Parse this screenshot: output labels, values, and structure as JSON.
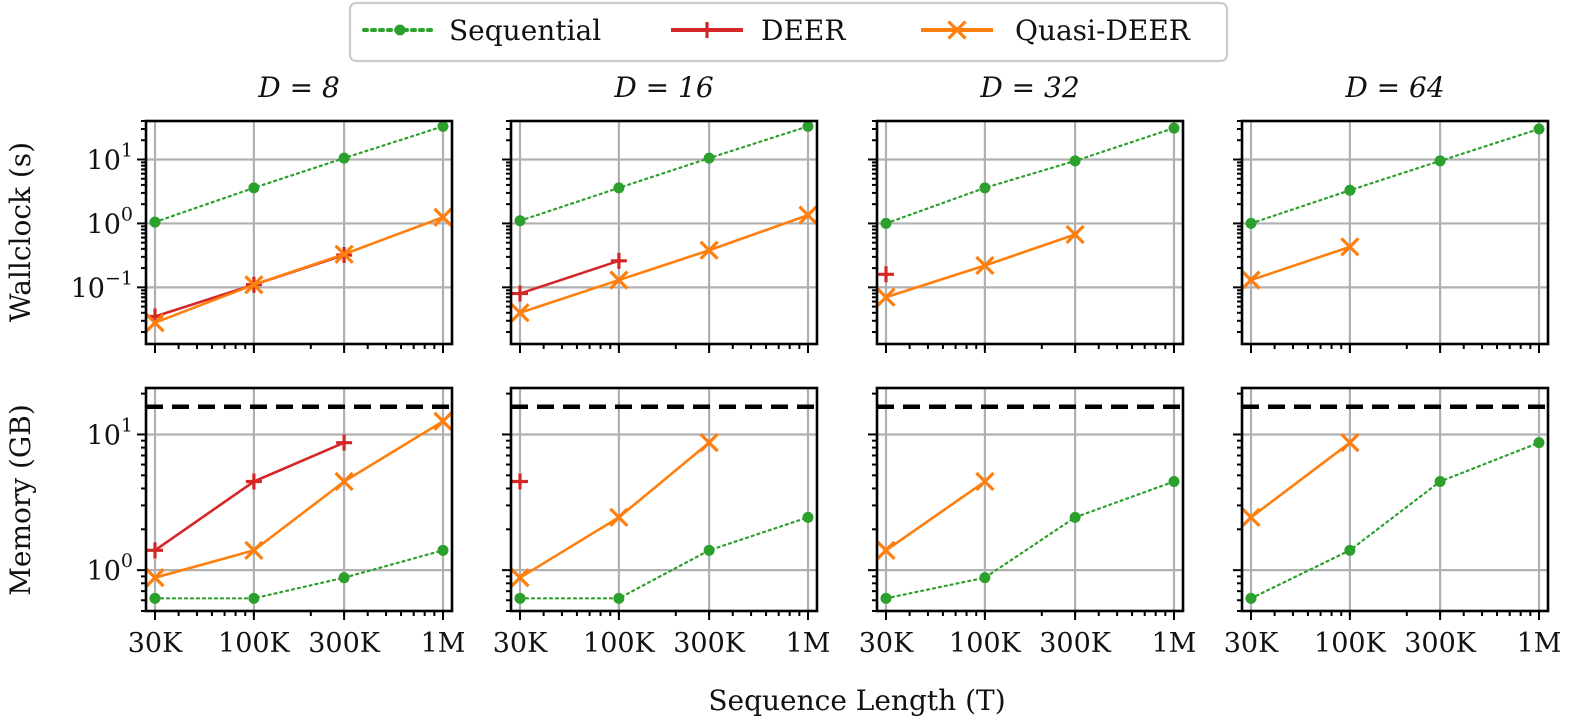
{
  "chart_data": {
    "type": "line",
    "title": "",
    "xlabel": "Sequence Length (T)",
    "ylabels": {
      "wallclock": "Wallclock (s)",
      "memory": "Memory (GB)"
    },
    "x_categories": [
      "30K",
      "100K",
      "300K",
      "1M"
    ],
    "x_values": [
      30000,
      100000,
      300000,
      1000000
    ],
    "x_scale": "log",
    "y_scale": "log",
    "grid": true,
    "legend_position": "top-center",
    "legend": [
      {
        "name": "Sequential",
        "color": "#2ca02c",
        "marker": "circle",
        "linestyle": "dotted"
      },
      {
        "name": "DEER",
        "color": "#d62728",
        "marker": "plus",
        "linestyle": "solid"
      },
      {
        "name": "Quasi-DEER",
        "color": "#ff7f0e",
        "marker": "x",
        "linestyle": "solid"
      }
    ],
    "memory_limit_gb": 16,
    "rows": {
      "wallclock": {
        "ylim": [
          0.013,
          40
        ],
        "yticks": [
          0.1,
          1,
          10
        ],
        "ytick_labels": [
          [
            "10",
            "−1"
          ],
          [
            "10",
            "0"
          ],
          [
            "10",
            "1"
          ]
        ]
      },
      "memory": {
        "ylim": [
          0.5,
          22
        ],
        "yticks": [
          1,
          10
        ],
        "ytick_labels": [
          [
            "10",
            "0"
          ],
          [
            "10",
            "1"
          ]
        ]
      }
    },
    "panels": [
      {
        "title": "D = 8",
        "wallclock": {
          "Sequential": [
            1.05,
            3.6,
            10.5,
            33
          ],
          "DEER": [
            0.035,
            0.11,
            0.32,
            null
          ],
          "Quasi-DEER": [
            0.028,
            0.11,
            0.33,
            1.25
          ]
        },
        "memory": {
          "Sequential": [
            0.62,
            0.62,
            0.88,
            1.4
          ],
          "DEER": [
            1.4,
            4.5,
            8.7,
            null
          ],
          "Quasi-DEER": [
            0.88,
            1.4,
            4.5,
            12.5
          ]
        }
      },
      {
        "title": "D = 16",
        "wallclock": {
          "Sequential": [
            1.1,
            3.6,
            10.5,
            33
          ],
          "DEER": [
            0.08,
            0.26,
            null,
            null
          ],
          "Quasi-DEER": [
            0.04,
            0.13,
            0.38,
            1.35
          ]
        },
        "memory": {
          "Sequential": [
            0.62,
            0.62,
            1.4,
            2.45
          ],
          "DEER": [
            4.5,
            null,
            null,
            null
          ],
          "Quasi-DEER": [
            0.88,
            2.45,
            8.7,
            null
          ]
        }
      },
      {
        "title": "D = 32",
        "wallclock": {
          "Sequential": [
            1.0,
            3.6,
            9.5,
            31
          ],
          "DEER": [
            0.16,
            null,
            null,
            null
          ],
          "Quasi-DEER": [
            0.07,
            0.22,
            0.67,
            null
          ]
        },
        "memory": {
          "Sequential": [
            0.62,
            0.88,
            2.45,
            4.5
          ],
          "DEER": [
            null,
            null,
            null,
            null
          ],
          "Quasi-DEER": [
            1.4,
            4.5,
            null,
            null
          ]
        }
      },
      {
        "title": "D = 64",
        "wallclock": {
          "Sequential": [
            1.0,
            3.3,
            9.5,
            30
          ],
          "DEER": [
            null,
            null,
            null,
            null
          ],
          "Quasi-DEER": [
            0.13,
            0.43,
            null,
            null
          ]
        },
        "memory": {
          "Sequential": [
            0.62,
            1.4,
            4.5,
            8.7
          ],
          "DEER": [
            null,
            null,
            null,
            null
          ],
          "Quasi-DEER": [
            2.45,
            8.7,
            null,
            null
          ]
        }
      }
    ]
  }
}
